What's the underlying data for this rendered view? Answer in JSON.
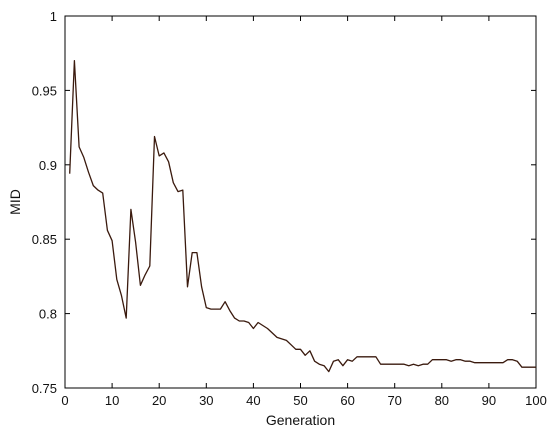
{
  "chart_data": {
    "type": "line",
    "title": "",
    "xlabel": "Generation",
    "ylabel": "MID",
    "xlim": [
      0,
      100
    ],
    "ylim": [
      0.75,
      1.0
    ],
    "xticks": [
      0,
      10,
      20,
      30,
      40,
      50,
      60,
      70,
      80,
      90,
      100
    ],
    "yticks": [
      0.75,
      0.8,
      0.85,
      0.9,
      0.95,
      1.0
    ],
    "xtick_labels": [
      "0",
      "10",
      "20",
      "30",
      "40",
      "50",
      "60",
      "70",
      "80",
      "90",
      "100"
    ],
    "ytick_labels": [
      "0.75",
      "0.8",
      "0.85",
      "0.9",
      "0.95",
      "1"
    ],
    "grid": false,
    "legend": "none",
    "colors": {
      "line": "#3a1a0e",
      "axis": "#000000"
    },
    "series": [
      {
        "x": [
          1,
          2,
          3,
          4,
          5,
          6,
          7,
          8,
          9,
          10,
          11,
          12,
          13,
          14,
          15,
          16,
          17,
          18,
          19,
          20,
          21,
          22,
          23,
          24,
          25,
          26,
          27,
          28,
          29,
          30,
          31,
          32,
          33,
          34,
          35,
          36,
          37,
          38,
          39,
          40,
          41,
          42,
          43,
          44,
          45,
          46,
          47,
          48,
          49,
          50,
          51,
          52,
          53,
          54,
          55,
          56,
          57,
          58,
          59,
          60,
          61,
          62,
          63,
          64,
          65,
          66,
          67,
          68,
          69,
          70,
          71,
          72,
          73,
          74,
          75,
          76,
          77,
          78,
          79,
          80,
          81,
          82,
          83,
          84,
          85,
          86,
          87,
          88,
          89,
          90,
          91,
          92,
          93,
          94,
          95,
          96,
          97,
          98,
          99,
          100
        ],
        "y": [
          0.894,
          0.97,
          0.912,
          0.905,
          0.895,
          0.886,
          0.883,
          0.881,
          0.856,
          0.849,
          0.823,
          0.812,
          0.797,
          0.87,
          0.848,
          0.819,
          0.826,
          0.832,
          0.919,
          0.906,
          0.908,
          0.902,
          0.888,
          0.882,
          0.883,
          0.818,
          0.841,
          0.841,
          0.818,
          0.804,
          0.803,
          0.803,
          0.803,
          0.808,
          0.802,
          0.797,
          0.795,
          0.795,
          0.794,
          0.79,
          0.794,
          0.792,
          0.79,
          0.787,
          0.784,
          0.783,
          0.782,
          0.779,
          0.776,
          0.776,
          0.772,
          0.775,
          0.768,
          0.766,
          0.765,
          0.761,
          0.768,
          0.769,
          0.765,
          0.769,
          0.768,
          0.771,
          0.771,
          0.771,
          0.771,
          0.771,
          0.766,
          0.766,
          0.766,
          0.766,
          0.766,
          0.766,
          0.765,
          0.766,
          0.765,
          0.766,
          0.766,
          0.769,
          0.769,
          0.769,
          0.769,
          0.768,
          0.769,
          0.769,
          0.768,
          0.768,
          0.767,
          0.767,
          0.767,
          0.767,
          0.767,
          0.767,
          0.767,
          0.769,
          0.769,
          0.768,
          0.764,
          0.764,
          0.764,
          0.764
        ]
      }
    ]
  }
}
